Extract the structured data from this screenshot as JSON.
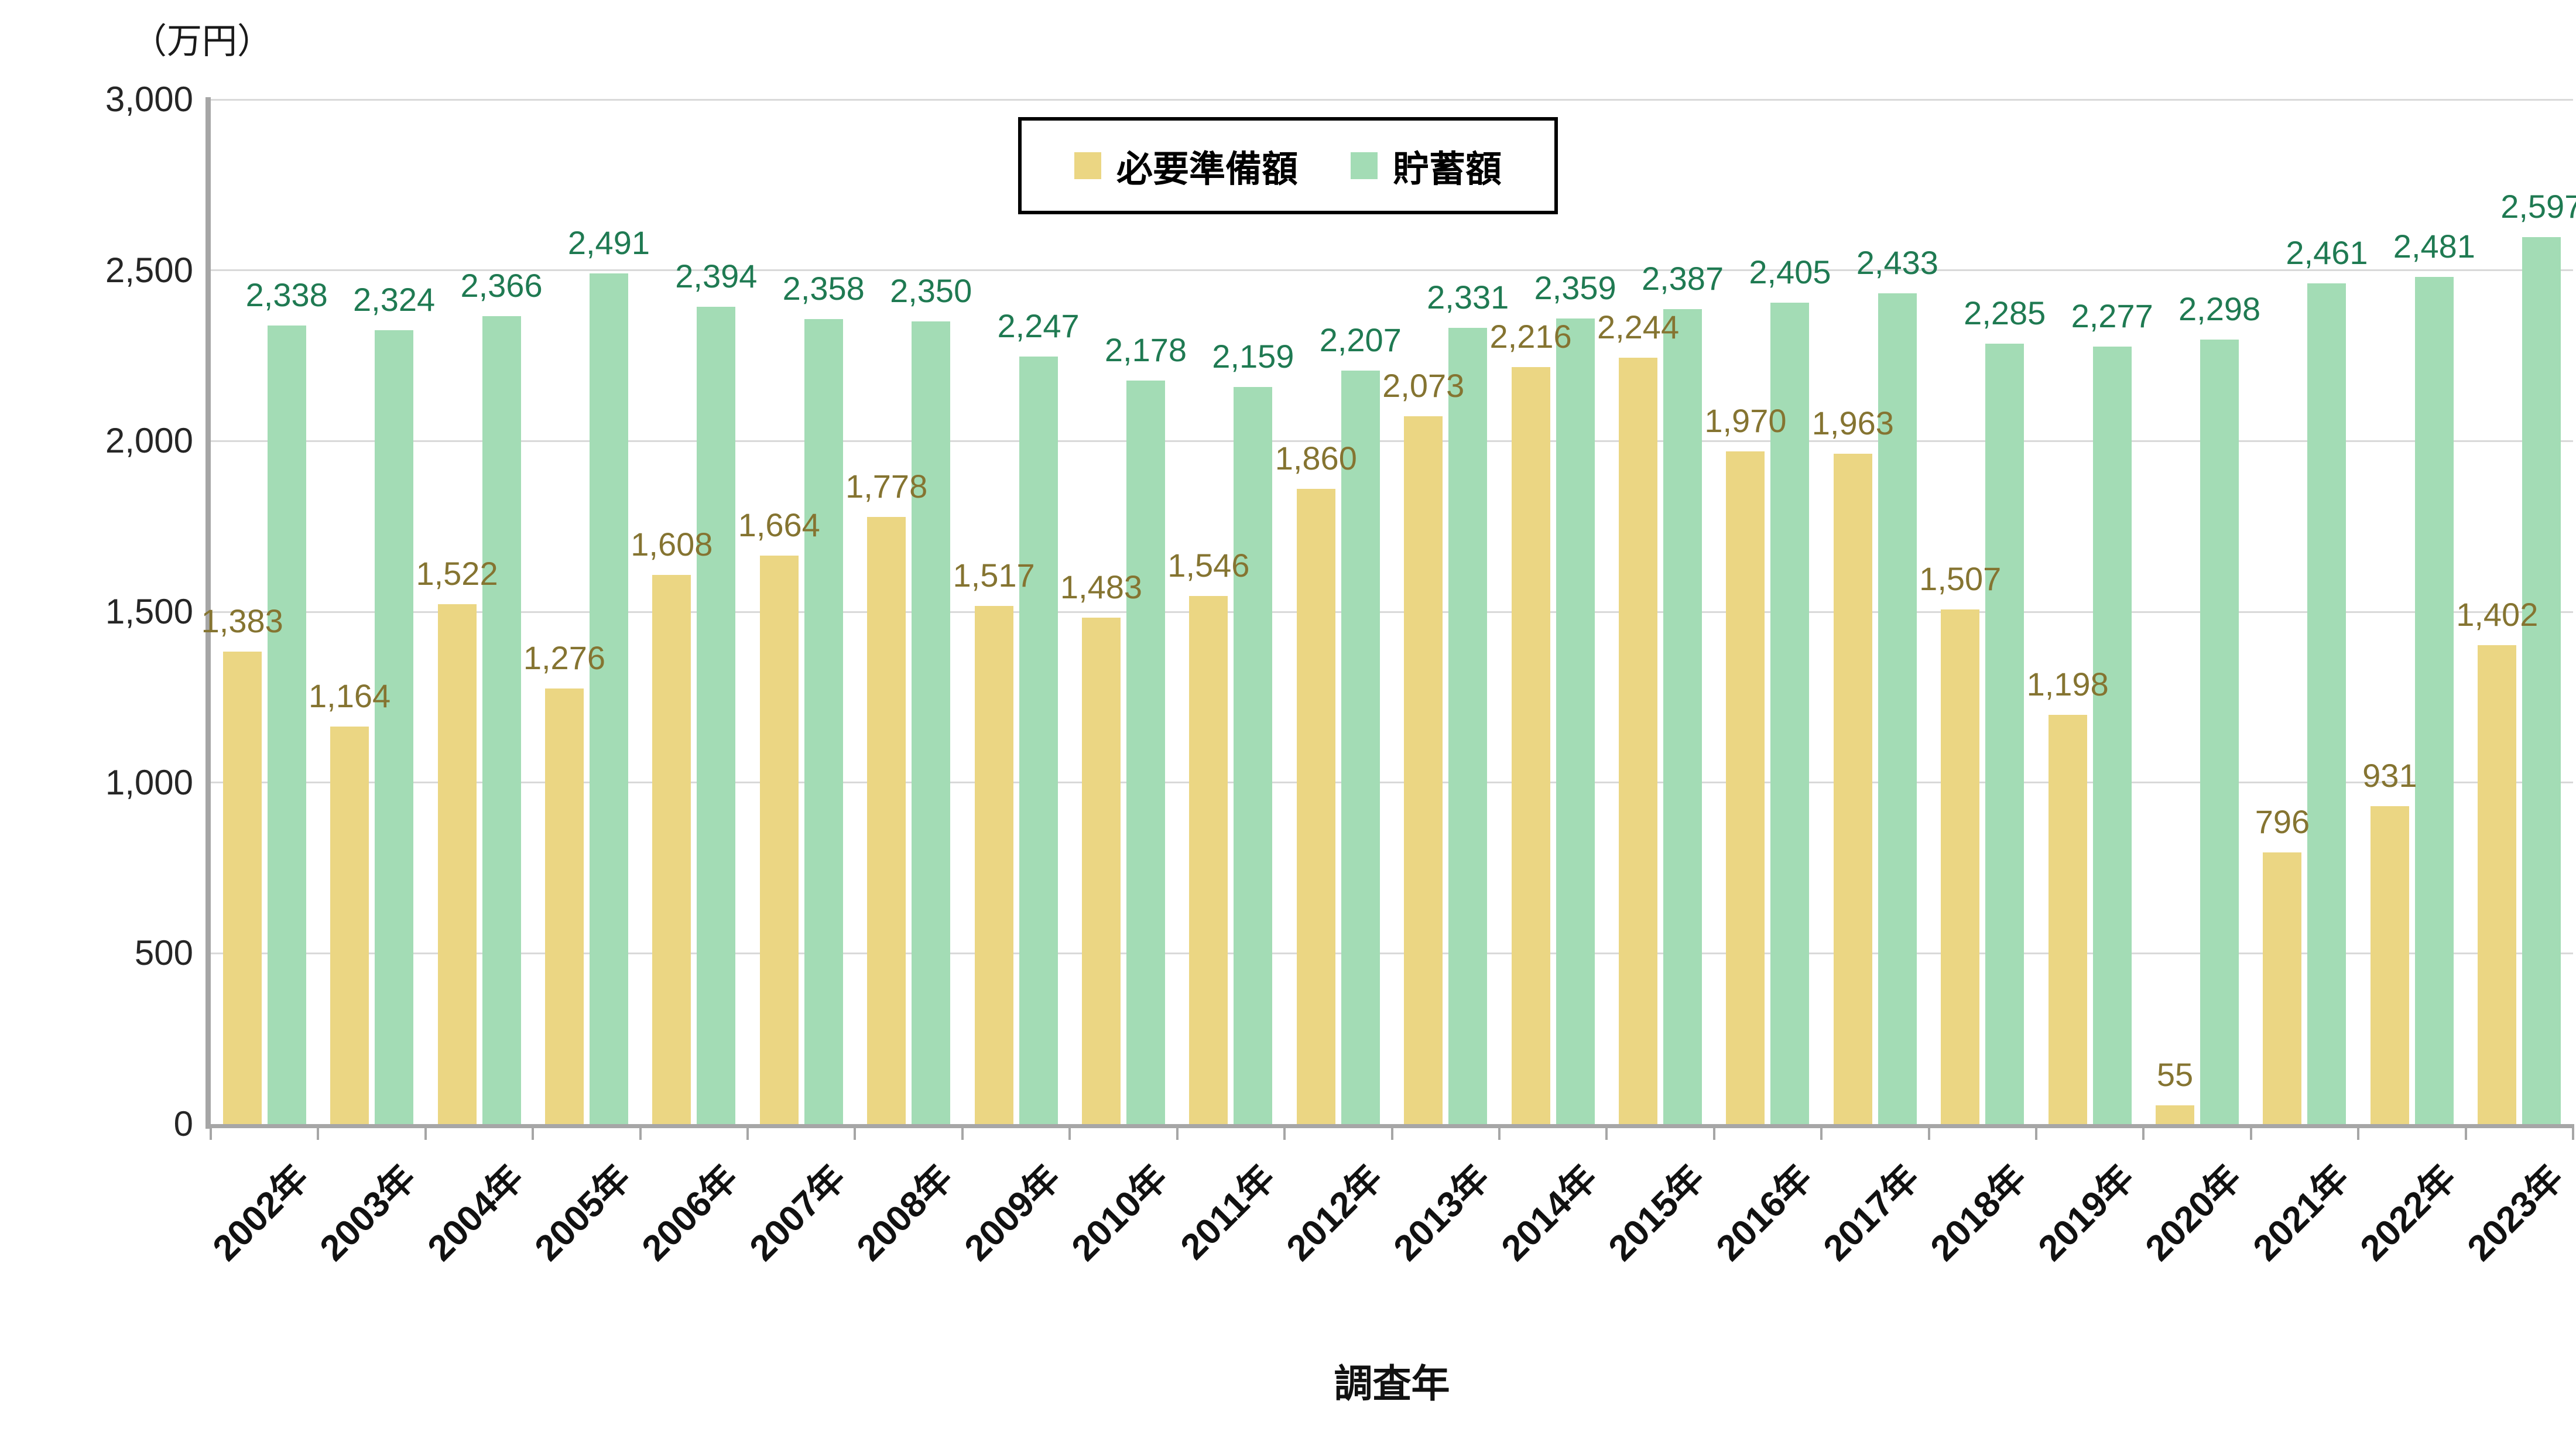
{
  "chart_data": {
    "type": "bar",
    "title": "",
    "unit_label": "（万円）",
    "xlabel": "調査年",
    "ylabel": "（万円）",
    "ylim": [
      0,
      3000
    ],
    "ytick_step": 500,
    "grid": true,
    "legend_position": "top-center",
    "axis_color": "#a6a6a6",
    "gridline_color": "#d9d9d9",
    "categories": [
      "2002年",
      "2003年",
      "2004年",
      "2005年",
      "2006年",
      "2007年",
      "2008年",
      "2009年",
      "2010年",
      "2011年",
      "2012年",
      "2013年",
      "2014年",
      "2015年",
      "2016年",
      "2017年",
      "2018年",
      "2019年",
      "2020年",
      "2021年",
      "2022年",
      "2023年"
    ],
    "series": [
      {
        "key": "required",
        "name": "必要準備額",
        "color": "#ebd683",
        "label_color": "#857431",
        "values": [
          1383,
          1164,
          1522,
          1276,
          1608,
          1664,
          1778,
          1517,
          1483,
          1546,
          1860,
          2073,
          2216,
          2244,
          1970,
          1963,
          1507,
          1198,
          55,
          796,
          931,
          1402
        ]
      },
      {
        "key": "savings",
        "name": "貯蓄額",
        "color": "#a3dcb5",
        "label_color": "#1f7a52",
        "values": [
          2338,
          2324,
          2366,
          2491,
          2394,
          2358,
          2350,
          2247,
          2178,
          2159,
          2207,
          2331,
          2359,
          2387,
          2405,
          2433,
          2285,
          2277,
          2298,
          2461,
          2481,
          2597
        ]
      }
    ]
  }
}
